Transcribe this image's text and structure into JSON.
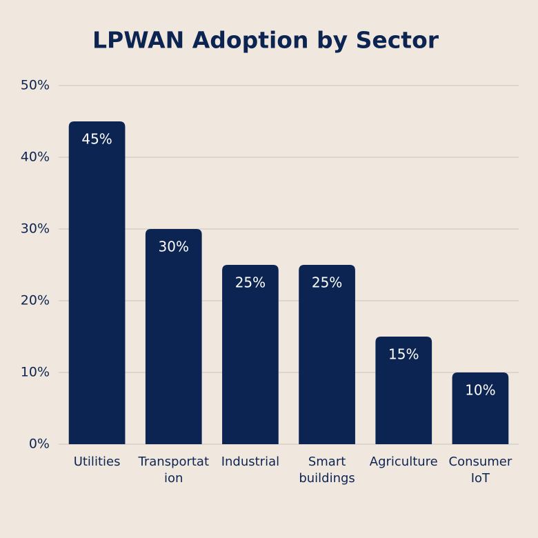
{
  "chart_data": {
    "type": "bar",
    "title": "LPWAN Adoption by Sector",
    "categories": [
      "Utilities",
      "Transportation",
      "Industrial",
      "Smart buildings",
      "Agriculture",
      "Consumer IoT"
    ],
    "values": [
      45,
      30,
      25,
      25,
      15,
      10
    ],
    "value_labels": [
      "45%",
      "30%",
      "25%",
      "25%",
      "15%",
      "10%"
    ],
    "color": "#0c2452",
    "ylim": [
      0,
      50
    ],
    "yticks": [
      {
        "value": 0,
        "label": "0%"
      },
      {
        "value": 10,
        "label": "10%"
      },
      {
        "value": 20,
        "label": "20%"
      },
      {
        "value": 30,
        "label": "30%"
      },
      {
        "value": 40,
        "label": "40%"
      },
      {
        "value": 50,
        "label": "50%"
      }
    ],
    "grid": true
  }
}
